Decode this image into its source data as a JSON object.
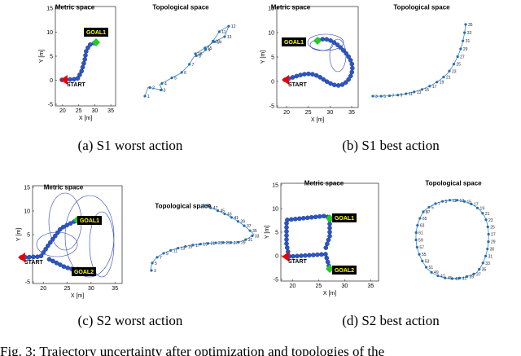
{
  "panels": [
    {
      "metric_title": "Metric space",
      "topo_title": "Topological space",
      "xlabel": "X [m]",
      "ylabel": "Y [m]",
      "xticks": [
        20,
        25,
        30,
        35
      ],
      "yticks": [
        -5,
        0,
        5,
        10,
        15
      ],
      "start": "START",
      "goals": [
        "GOAL1"
      ],
      "node_labels": [
        "1",
        "2",
        "3",
        "4",
        "5",
        "6",
        "7",
        "8",
        "9",
        "10",
        "11",
        "12",
        "13",
        "14",
        "15",
        "16"
      ],
      "caption": "(a) S1 worst action"
    },
    {
      "metric_title": "Metric space",
      "topo_title": "Topological space",
      "xlabel": "X [m]",
      "ylabel": "Y [m]",
      "xticks": [
        20,
        25,
        30,
        35
      ],
      "yticks": [
        -5,
        0,
        5,
        10,
        15
      ],
      "start": "START",
      "goals": [
        "GOAL1"
      ],
      "node_labels": [
        "3",
        "5",
        "7",
        "9",
        "11",
        "13",
        "15",
        "17",
        "19",
        "21",
        "23",
        "25",
        "27",
        "29",
        "31",
        "33",
        "35"
      ],
      "caption": "(b) S1 best action"
    },
    {
      "metric_title": "Metric space",
      "topo_title": "Topological space",
      "xlabel": "X [m]",
      "ylabel": "Y [m]",
      "xticks": [
        20,
        25,
        30,
        35
      ],
      "yticks": [
        -5,
        0,
        5,
        10,
        15
      ],
      "start": "START",
      "goals": [
        "GOAL1",
        "GOAL2"
      ],
      "node_labels": [
        "3",
        "5",
        "7",
        "9",
        "11",
        "13",
        "15",
        "17",
        "19",
        "21",
        "23",
        "25",
        "27",
        "29",
        "31",
        "33",
        "35",
        "37",
        "39",
        "41",
        "43",
        "45",
        "47",
        "49"
      ],
      "caption": "(c) S2 worst action"
    },
    {
      "metric_title": "Metric space",
      "topo_title": "Topological space",
      "xlabel": "X [m]",
      "ylabel": "Y [m]",
      "xticks": [
        20,
        25,
        30,
        35
      ],
      "yticks": [
        -5,
        0,
        5,
        10,
        15
      ],
      "start": "START",
      "goals": [
        "GOAL1",
        "GOAL2"
      ],
      "node_labels": [
        "3",
        "5",
        "7",
        "9",
        "11",
        "13",
        "15",
        "17",
        "19",
        "21",
        "23",
        "25",
        "27",
        "29",
        "30",
        "31",
        "33",
        "35",
        "37",
        "39",
        "41",
        "43",
        "45",
        "47",
        "49",
        "51",
        "53",
        "55",
        "57",
        "59",
        "61",
        "63",
        "65",
        "67"
      ],
      "caption": "(d) S2 best action"
    }
  ],
  "figure_caption": "Fig. 3: Trajectory uncertainty after optimization and topologies of the"
}
